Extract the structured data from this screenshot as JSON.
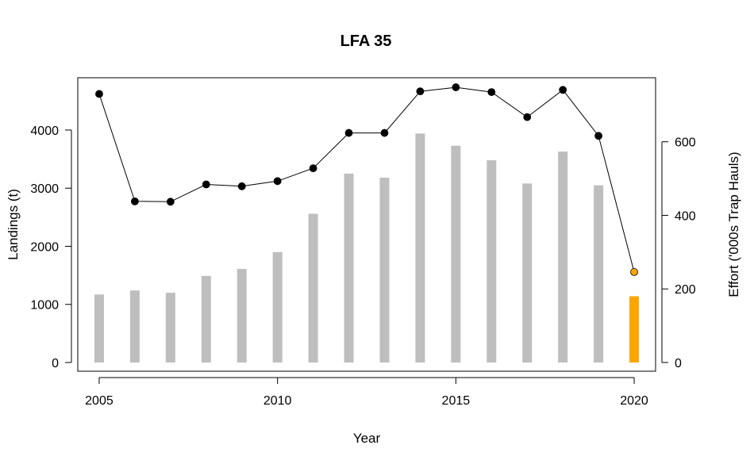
{
  "chart_data": {
    "type": "bar+line",
    "title": "LFA 35",
    "xlabel": "Year",
    "ylabel_left": "Landings (t)",
    "ylabel_right": "Effort ('000s Trap Hauls)",
    "x": [
      2005,
      2006,
      2007,
      2008,
      2009,
      2010,
      2011,
      2012,
      2013,
      2014,
      2015,
      2016,
      2017,
      2018,
      2019,
      2020
    ],
    "x_ticks": [
      2005,
      2010,
      2015,
      2020
    ],
    "x_tick_labels": [
      "2005",
      "2010",
      "2015",
      "2020"
    ],
    "xlim": [
      2004.4,
      2020.6
    ],
    "left_ticks": [
      0,
      1000,
      2000,
      3000,
      4000
    ],
    "left_tick_labels": [
      "0",
      "1000",
      "2000",
      "3000",
      "4000"
    ],
    "left_ylim": [
      -150,
      4900
    ],
    "right_ticks": [
      0,
      200,
      400,
      600
    ],
    "right_tick_labels": [
      "0",
      "200",
      "400",
      "600"
    ],
    "right_ylim": [
      -23.7,
      774
    ],
    "series": [
      {
        "kind": "bar",
        "axis": "left",
        "values": [
          1170,
          1240,
          1200,
          1490,
          1610,
          1900,
          2560,
          3250,
          3180,
          3940,
          3730,
          3480,
          3080,
          3630,
          3050,
          1140
        ],
        "color": "#bebebe",
        "highlight_last_color": "#ffa500"
      },
      {
        "kind": "line",
        "axis": "right",
        "values": [
          730,
          438,
          437,
          484,
          479,
          493,
          528,
          624,
          624,
          737,
          748,
          735,
          667,
          741,
          616,
          246
        ],
        "color": "#000000",
        "highlight_last_color": "#ffa500"
      }
    ],
    "grid": false,
    "legend": "none"
  }
}
